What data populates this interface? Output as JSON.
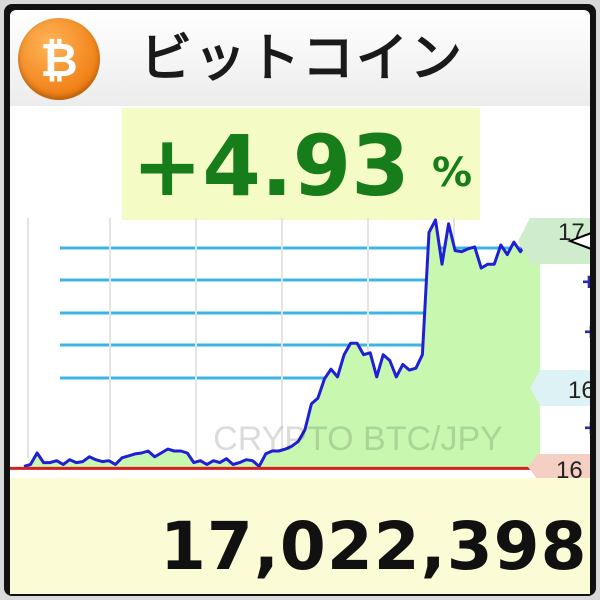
{
  "header": {
    "title": "ビットコイン",
    "logo_icon": "bitcoin-logo-icon",
    "logo_symbol": "₿"
  },
  "change": {
    "value": "+4.93",
    "unit": "%"
  },
  "watermark": "CRYPTO BTC/JPY",
  "price": "17,022,398",
  "side_labels": {
    "top": "17",
    "plus_1": "+",
    "plus_2": "+",
    "mid": "16",
    "plus_3": "+",
    "bottom": "16"
  },
  "colors": {
    "accent_orange": "#f7931a",
    "positive_green": "#167d1a",
    "line_blue": "#1f1fd6",
    "area_green": "#c8f7b0",
    "grid_cyan": "#3cb4e6",
    "baseline_red": "#d42020",
    "percent_bg": "#f4fbc4",
    "price_bg": "#fbfbd6"
  },
  "chart_data": {
    "type": "area",
    "title": "",
    "xlabel": "",
    "ylabel": "",
    "grid": true,
    "values": [
      2,
      4,
      16,
      6,
      6,
      8,
      4,
      9,
      6,
      7,
      12,
      9,
      7,
      8,
      4,
      11,
      13,
      15,
      16,
      18,
      12,
      16,
      20,
      18,
      18,
      16,
      6,
      8,
      4,
      8,
      6,
      10,
      4,
      6,
      9,
      8,
      2,
      15,
      18,
      18,
      20,
      23,
      28,
      40,
      67,
      73,
      93,
      103,
      95,
      118,
      130,
      130,
      118,
      120,
      95,
      118,
      112,
      95,
      108,
      102,
      104,
      118,
      245,
      258,
      212,
      254,
      226,
      225,
      228,
      230,
      208,
      212,
      212,
      232,
      222,
      235,
      225,
      235,
      240,
      240
    ],
    "baseline": 0,
    "ylim": [
      -10,
      260
    ]
  }
}
